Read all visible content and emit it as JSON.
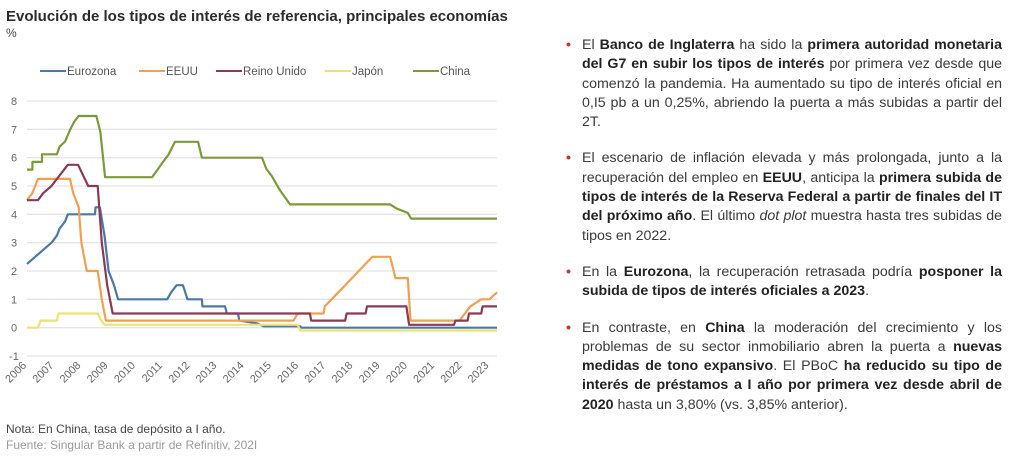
{
  "chart_data": {
    "type": "line",
    "title": "Evolución de los tipos de interés de referencia, principales economías",
    "ylabel": "%",
    "xlabel": "",
    "ylim": [
      -1,
      8
    ],
    "xlim": [
      2006,
      2023.28
    ],
    "yticks": [
      "-1",
      "0",
      "1",
      "2",
      "3",
      "4",
      "5",
      "6",
      "7",
      "8"
    ],
    "xticks": [
      "2006",
      "2007",
      "2008",
      "2009",
      "2010",
      "2011",
      "2012",
      "2013",
      "2014",
      "2015",
      "2016",
      "2017",
      "2018",
      "2019",
      "2020",
      "2021",
      "2022",
      "2023"
    ],
    "grid": true,
    "legend_position": "top",
    "series": [
      {
        "name": "Eurozona",
        "color": "#4a78a8",
        "points": [
          [
            2006,
            2.25
          ],
          [
            2006.3,
            2.5
          ],
          [
            2006.6,
            2.75
          ],
          [
            2006.9,
            3.0
          ],
          [
            2007.1,
            3.25
          ],
          [
            2007.2,
            3.5
          ],
          [
            2007.4,
            3.75
          ],
          [
            2007.5,
            4.0
          ],
          [
            2008.5,
            4.0
          ],
          [
            2008.52,
            4.25
          ],
          [
            2008.68,
            4.25
          ],
          [
            2008.85,
            3.25
          ],
          [
            2009.0,
            2.0
          ],
          [
            2009.2,
            1.5
          ],
          [
            2009.35,
            1.0
          ],
          [
            2011.15,
            1.0
          ],
          [
            2011.3,
            1.25
          ],
          [
            2011.5,
            1.5
          ],
          [
            2011.73,
            1.5
          ],
          [
            2011.9,
            1.0
          ],
          [
            2012.43,
            1.0
          ],
          [
            2012.45,
            0.75
          ],
          [
            2013.28,
            0.75
          ],
          [
            2013.35,
            0.5
          ],
          [
            2013.76,
            0.5
          ],
          [
            2013.8,
            0.25
          ],
          [
            2014.46,
            0.15
          ],
          [
            2014.7,
            0.05
          ],
          [
            2016.04,
            0.05
          ],
          [
            2016.1,
            0.0
          ],
          [
            2023.28,
            0.0
          ]
        ]
      },
      {
        "name": "EEUU",
        "color": "#f0a050",
        "points": [
          [
            2006,
            4.5
          ],
          [
            2006.2,
            4.75
          ],
          [
            2006.4,
            5.25
          ],
          [
            2007.58,
            5.25
          ],
          [
            2007.7,
            4.75
          ],
          [
            2007.9,
            4.25
          ],
          [
            2008.0,
            3.0
          ],
          [
            2008.2,
            2.0
          ],
          [
            2008.6,
            2.0
          ],
          [
            2008.75,
            1.0
          ],
          [
            2008.9,
            0.25
          ],
          [
            2015.8,
            0.25
          ],
          [
            2015.95,
            0.5
          ],
          [
            2016.9,
            0.5
          ],
          [
            2016.95,
            0.75
          ],
          [
            2017.2,
            1.0
          ],
          [
            2017.45,
            1.25
          ],
          [
            2017.7,
            1.5
          ],
          [
            2017.95,
            1.75
          ],
          [
            2018.2,
            2.0
          ],
          [
            2018.45,
            2.25
          ],
          [
            2018.7,
            2.5
          ],
          [
            2019.35,
            2.5
          ],
          [
            2019.55,
            1.75
          ],
          [
            2020.0,
            1.75
          ],
          [
            2020.1,
            0.25
          ],
          [
            2021.9,
            0.25
          ],
          [
            2022.3,
            0.75
          ],
          [
            2022.7,
            1.0
          ],
          [
            2023.0,
            1.0
          ],
          [
            2023.28,
            1.25
          ]
        ]
      },
      {
        "name": "Reino Unido",
        "color": "#8b3a52",
        "points": [
          [
            2006,
            4.5
          ],
          [
            2006.4,
            4.5
          ],
          [
            2006.6,
            4.75
          ],
          [
            2006.9,
            5.0
          ],
          [
            2007.1,
            5.25
          ],
          [
            2007.3,
            5.5
          ],
          [
            2007.5,
            5.75
          ],
          [
            2007.88,
            5.75
          ],
          [
            2008.0,
            5.5
          ],
          [
            2008.25,
            5.0
          ],
          [
            2008.6,
            5.0
          ],
          [
            2008.75,
            3.0
          ],
          [
            2008.95,
            1.5
          ],
          [
            2009.15,
            0.5
          ],
          [
            2016.4,
            0.5
          ],
          [
            2016.45,
            0.25
          ],
          [
            2017.7,
            0.25
          ],
          [
            2017.75,
            0.5
          ],
          [
            2018.45,
            0.5
          ],
          [
            2018.5,
            0.75
          ],
          [
            2019.95,
            0.75
          ],
          [
            2020.05,
            0.1
          ],
          [
            2021.7,
            0.1
          ],
          [
            2021.75,
            0.25
          ],
          [
            2022.2,
            0.25
          ],
          [
            2022.25,
            0.5
          ],
          [
            2022.7,
            0.5
          ],
          [
            2022.75,
            0.75
          ],
          [
            2023.28,
            0.75
          ]
        ]
      },
      {
        "name": "Japón",
        "color": "#ece27a",
        "points": [
          [
            2006,
            0.0
          ],
          [
            2006.4,
            0.0
          ],
          [
            2006.5,
            0.25
          ],
          [
            2007.1,
            0.25
          ],
          [
            2007.15,
            0.5
          ],
          [
            2008.6,
            0.5
          ],
          [
            2008.7,
            0.3
          ],
          [
            2008.85,
            0.1
          ],
          [
            2015.95,
            0.1
          ],
          [
            2016.05,
            -0.1
          ],
          [
            2023.28,
            -0.1
          ]
        ]
      },
      {
        "name": "China",
        "color": "#7d9a3a",
        "points": [
          [
            2006,
            5.58
          ],
          [
            2006.2,
            5.58
          ],
          [
            2006.2,
            5.85
          ],
          [
            2006.55,
            5.85
          ],
          [
            2006.55,
            6.12
          ],
          [
            2007.1,
            6.12
          ],
          [
            2007.2,
            6.39
          ],
          [
            2007.4,
            6.57
          ],
          [
            2007.6,
            7.02
          ],
          [
            2007.75,
            7.29
          ],
          [
            2007.9,
            7.47
          ],
          [
            2008.55,
            7.47
          ],
          [
            2008.7,
            6.9
          ],
          [
            2008.87,
            5.31
          ],
          [
            2010.6,
            5.31
          ],
          [
            2010.8,
            5.58
          ],
          [
            2011.0,
            5.85
          ],
          [
            2011.2,
            6.1
          ],
          [
            2011.44,
            6.56
          ],
          [
            2012.29,
            6.56
          ],
          [
            2012.43,
            6.0
          ],
          [
            2014.64,
            6.0
          ],
          [
            2014.8,
            5.6
          ],
          [
            2015.0,
            5.35
          ],
          [
            2015.3,
            4.85
          ],
          [
            2015.67,
            4.35
          ],
          [
            2019.35,
            4.35
          ],
          [
            2019.6,
            4.2
          ],
          [
            2020.0,
            4.05
          ],
          [
            2020.12,
            3.85
          ],
          [
            2023.28,
            3.85
          ]
        ]
      }
    ]
  },
  "note": "Nota: En China, tasa de depósito a I año.",
  "source": "Fuente: Singular Bank a partir de Refinitiv, 202I",
  "bullets": [
    [
      {
        "t": "El "
      },
      {
        "t": "Banco de Inglaterra",
        "b": true
      },
      {
        "t": " ha sido la "
      },
      {
        "t": "primera autoridad monetaria del G7 en subir los tipos de interés",
        "b": true
      },
      {
        "t": " por primera vez desde que comenzó la pandemia. Ha aumentado su tipo de interés oficial en 0,I5 pb a un 0,25%, abriendo la puerta a más subidas a partir del 2T."
      }
    ],
    [
      {
        "t": "El escenario de inflación elevada y más prolongada, junto a la recuperación del empleo en "
      },
      {
        "t": "EEUU",
        "b": true
      },
      {
        "t": ", anticipa la "
      },
      {
        "t": "primera subida de tipos de interés de la Reserva Federal a partir de finales del IT del próximo año",
        "b": true
      },
      {
        "t": ". El último "
      },
      {
        "t": "dot plot",
        "i": true
      },
      {
        "t": " muestra hasta tres subidas de tipos en 2022."
      }
    ],
    [
      {
        "t": "En la "
      },
      {
        "t": "Eurozona",
        "b": true
      },
      {
        "t": ", la recuperación retrasada podría "
      },
      {
        "t": "posponer la subida de tipos de interés oficiales a 2023",
        "b": true
      },
      {
        "t": "."
      }
    ],
    [
      {
        "t": "En contraste, en "
      },
      {
        "t": "China",
        "b": true
      },
      {
        "t": " la moderación del crecimiento y los problemas de su sector inmobiliario abren la puerta a "
      },
      {
        "t": "nuevas medidas de tono expansivo",
        "b": true
      },
      {
        "t": ". El PBoC "
      },
      {
        "t": "ha reducido su tipo de interés de préstamos a I año por primera vez desde abril de 2020",
        "b": true
      },
      {
        "t": " hasta un 3,80% (vs. 3,85% anterior)."
      }
    ]
  ]
}
